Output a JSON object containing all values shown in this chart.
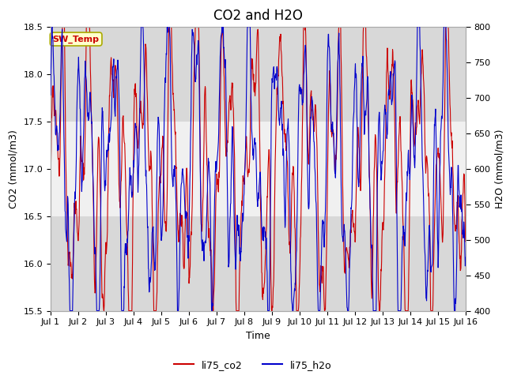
{
  "title": "CO2 and H2O",
  "xlabel": "Time",
  "ylabel_left": "CO2 (mmol/m3)",
  "ylabel_right": "H2O (mmol/m3)",
  "legend_labels": [
    "li75_co2",
    "li75_h2o"
  ],
  "legend_colors": [
    "#cc0000",
    "#0000cc"
  ],
  "co2_ylim": [
    15.5,
    18.5
  ],
  "h2o_ylim": [
    400,
    800
  ],
  "fig_facecolor": "#ffffff",
  "plot_bg_color": "#ffffff",
  "band_dark_color": "#d8d8d8",
  "band_light_color": "#f0f0f0",
  "sw_temp_box_facecolor": "#ffffcc",
  "sw_temp_box_edgecolor": "#aaaa00",
  "sw_temp_text_color": "#cc0000",
  "title_fontsize": 12,
  "axis_label_fontsize": 9,
  "tick_fontsize": 8,
  "n_days": 15,
  "seed": 123
}
